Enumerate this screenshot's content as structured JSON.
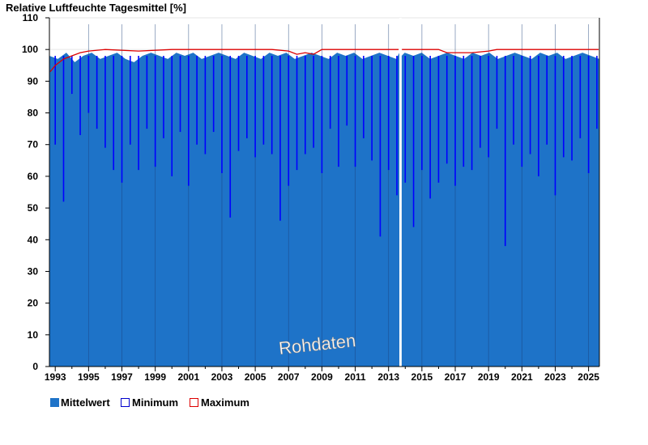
{
  "chart_data": {
    "type": "area",
    "title": "Relative Luftfeuchte Tagesmittel [%]",
    "ylabel": "",
    "xlabel": "",
    "ylim": [
      0,
      110
    ],
    "yticks": [
      0,
      10,
      20,
      30,
      40,
      50,
      60,
      70,
      80,
      90,
      100,
      110
    ],
    "xlim": [
      1992.65,
      2025.65
    ],
    "xticks": [
      "1993",
      "1995",
      "1997",
      "1999",
      "2001",
      "2003",
      "2005",
      "2007",
      "2009",
      "2011",
      "2013",
      "2015",
      "2017",
      "2019",
      "2021",
      "2023",
      "2025"
    ],
    "gap": [
      2013.65,
      2013.78
    ],
    "grid": true,
    "legend_position": "bottom-left",
    "watermark": "Rohdaten",
    "series": [
      {
        "name": "Mittelwert",
        "color": "#1e73c8",
        "style": "filled-area",
        "values": [
          98,
          97,
          99,
          96,
          98,
          99,
          97,
          98,
          99,
          97,
          96,
          98,
          99,
          98,
          97,
          99,
          98,
          99,
          97,
          98,
          99,
          98,
          97,
          99,
          98,
          97,
          99,
          98,
          99,
          97,
          98,
          99,
          98,
          97,
          99,
          98,
          99,
          97,
          98,
          99,
          98,
          97,
          99,
          98,
          99,
          97,
          98,
          99,
          98,
          97,
          99,
          98,
          99,
          97,
          98,
          99,
          98,
          97,
          99,
          98,
          99,
          97,
          98,
          99,
          98,
          97
        ]
      },
      {
        "name": "Minimum",
        "color": "#0000ff",
        "style": "line",
        "x": [
          1993.0,
          1993.5,
          1994.0,
          1994.5,
          1995.0,
          1995.5,
          1996.0,
          1996.5,
          1997.0,
          1997.5,
          1998.0,
          1998.5,
          1999.0,
          1999.5,
          2000.0,
          2000.5,
          2001.0,
          2001.5,
          2002.0,
          2002.5,
          2003.0,
          2003.5,
          2004.0,
          2004.5,
          2005.0,
          2005.5,
          2006.0,
          2006.5,
          2007.0,
          2007.5,
          2008.0,
          2008.5,
          2009.0,
          2009.5,
          2010.0,
          2010.5,
          2011.0,
          2011.5,
          2012.0,
          2012.5,
          2013.0,
          2013.5,
          2014.0,
          2014.5,
          2015.0,
          2015.5,
          2016.0,
          2016.5,
          2017.0,
          2017.5,
          2018.0,
          2018.5,
          2019.0,
          2019.5,
          2020.0,
          2020.5,
          2021.0,
          2021.5,
          2022.0,
          2022.5,
          2023.0,
          2023.5,
          2024.0,
          2024.5,
          2025.0,
          2025.5
        ],
        "values": [
          70,
          52,
          86,
          73,
          80,
          75,
          69,
          62,
          58,
          70,
          62,
          75,
          63,
          72,
          60,
          74,
          57,
          70,
          67,
          74,
          61,
          47,
          68,
          72,
          66,
          70,
          67,
          46,
          57,
          62,
          67,
          69,
          61,
          75,
          63,
          76,
          63,
          72,
          65,
          41,
          62,
          54,
          58,
          44,
          62,
          53,
          58,
          64,
          57,
          63,
          62,
          69,
          66,
          75,
          38,
          70,
          63,
          67,
          60,
          70,
          54,
          66,
          65,
          72,
          61,
          75
        ]
      },
      {
        "name": "Maximum",
        "color": "#dd0000",
        "style": "line",
        "x": [
          1992.7,
          1993.0,
          1993.5,
          1994.0,
          1994.5,
          1995.0,
          1996.0,
          1998.0,
          2000.0,
          2003.0,
          2006.0,
          2007.0,
          2007.5,
          2008.0,
          2008.5,
          2009.0,
          2012.0,
          2013.6,
          2013.8,
          2016.0,
          2016.5,
          2018.0,
          2019.0,
          2019.5,
          2021.0,
          2023.0,
          2025.6
        ],
        "values": [
          93,
          95,
          97,
          98,
          99,
          99.5,
          100,
          99.5,
          100,
          100,
          100,
          99.5,
          98.5,
          99,
          98.5,
          100,
          100,
          100,
          100,
          100,
          99,
          99,
          99.5,
          100,
          100,
          100,
          100
        ]
      }
    ]
  }
}
